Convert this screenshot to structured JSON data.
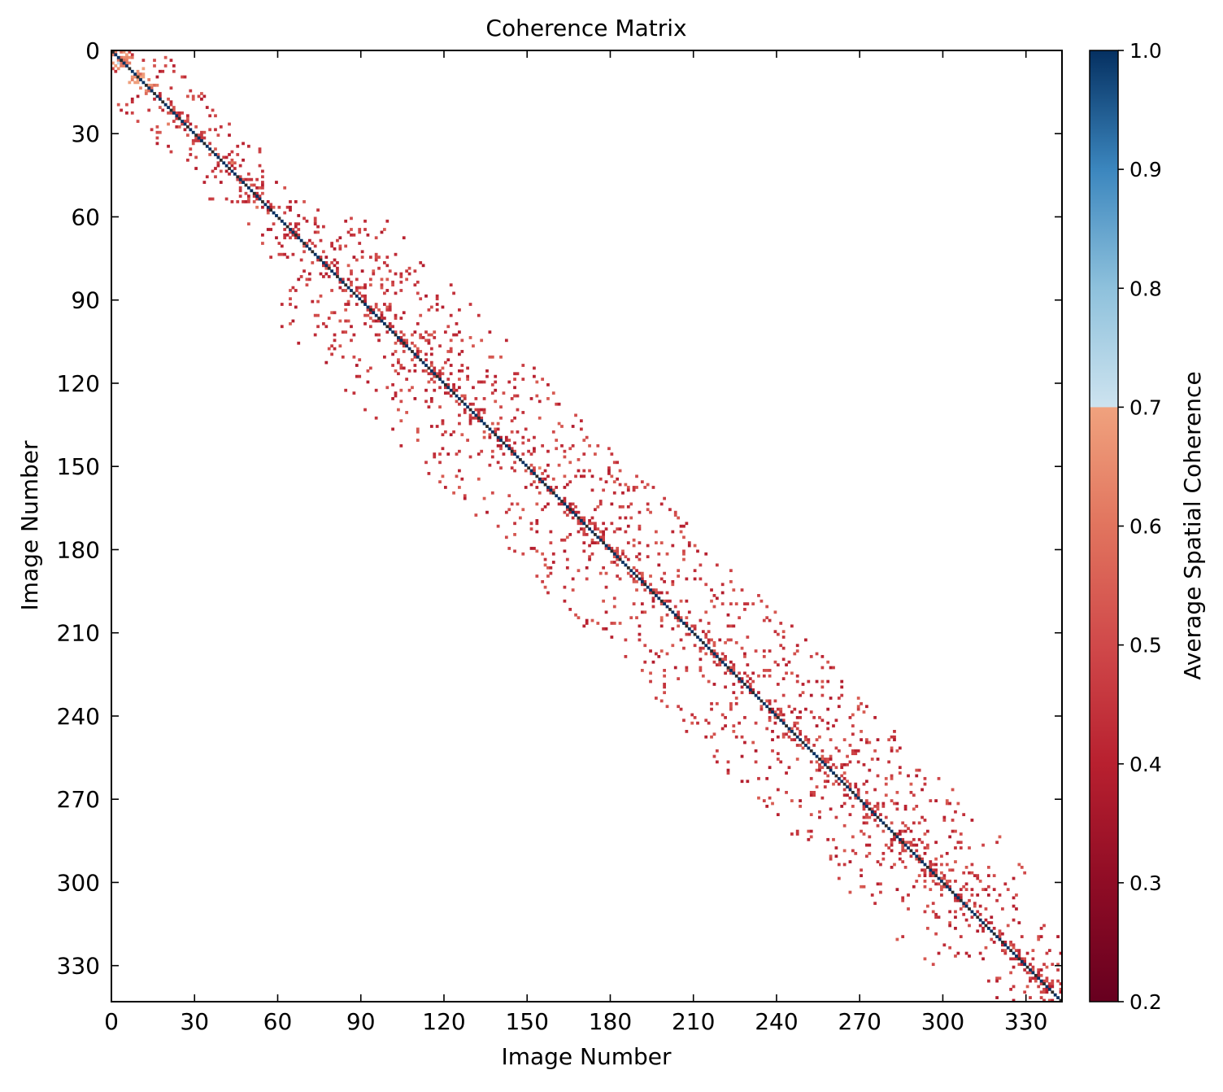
{
  "chart_data": {
    "type": "heatmap",
    "title": "Coherence Matrix",
    "xlabel": "Image Number",
    "ylabel": "Image Number",
    "n_images": 343,
    "xlim": [
      0,
      343
    ],
    "ylim": [
      343,
      0
    ],
    "x_ticks": [
      0,
      30,
      60,
      90,
      120,
      150,
      180,
      210,
      240,
      270,
      300,
      330
    ],
    "y_ticks": [
      0,
      30,
      60,
      90,
      120,
      150,
      180,
      210,
      240,
      270,
      300,
      330
    ],
    "colorbar": {
      "label": "Average Spatial Coherence",
      "vmin": 0.2,
      "vmax": 1.0,
      "ticks": [
        0.2,
        0.3,
        0.4,
        0.5,
        0.6,
        0.7,
        0.8,
        0.9,
        1.0
      ],
      "cmap": "RdBu",
      "color_stops": [
        {
          "v": 0.2,
          "color": "#67001f"
        },
        {
          "v": 0.3,
          "color": "#8f0c25"
        },
        {
          "v": 0.4,
          "color": "#b8202f"
        },
        {
          "v": 0.5,
          "color": "#d0494a"
        },
        {
          "v": 0.6,
          "color": "#e1745e"
        },
        {
          "v": 0.7,
          "color": "#f0a27e"
        },
        {
          "v": 0.7001,
          "color": "#cde3ef"
        },
        {
          "v": 0.8,
          "color": "#8ec1dc"
        },
        {
          "v": 0.9,
          "color": "#3b86be"
        },
        {
          "v": 1.0,
          "color": "#053061"
        }
      ]
    },
    "grid": false,
    "diagonal_value": 1.0,
    "band_structure": [
      {
        "row_start": 0,
        "row_end": 60,
        "half_width": 18
      },
      {
        "row_start": 60,
        "row_end": 300,
        "half_width": 38
      },
      {
        "row_start": 300,
        "row_end": 343,
        "half_width": 22
      }
    ],
    "typical_off_diagonal_coherence": 0.45,
    "notable_high_coherence_cells": [
      {
        "x": 2,
        "y": 4,
        "value": 0.72
      },
      {
        "x": 5,
        "y": 2,
        "value": 0.65
      },
      {
        "x": 7,
        "y": 10,
        "value": 0.62
      },
      {
        "x": 20,
        "y": 26,
        "value": 0.62
      },
      {
        "x": 43,
        "y": 40,
        "value": 0.62
      },
      {
        "x": 52,
        "y": 56,
        "value": 0.6
      },
      {
        "x": 154,
        "y": 150,
        "value": 0.63
      },
      {
        "x": 198,
        "y": 204,
        "value": 0.58
      }
    ]
  }
}
